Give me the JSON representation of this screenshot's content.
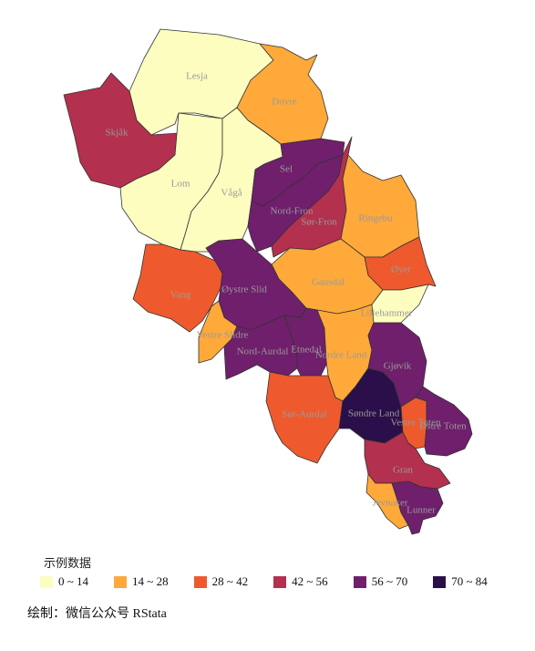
{
  "legend": {
    "title": "示例数据",
    "items": [
      {
        "label": "0 ~ 14",
        "color": "#fcfdbf"
      },
      {
        "label": "14 ~ 28",
        "color": "#fea93a"
      },
      {
        "label": "28 ~ 42",
        "color": "#ee5a2d"
      },
      {
        "label": "42 ~ 56",
        "color": "#b3304e"
      },
      {
        "label": "56 ~ 70",
        "color": "#6f1f6b"
      },
      {
        "label": "70 ~ 84",
        "color": "#2a0f4a"
      }
    ]
  },
  "credit": "绘制：微信公众号 RStata",
  "regions": [
    {
      "name": "Lesja",
      "class": 0
    },
    {
      "name": "Dovre",
      "class": 1
    },
    {
      "name": "Skjåk",
      "class": 3
    },
    {
      "name": "Lom",
      "class": 0
    },
    {
      "name": "Vågå",
      "class": 0
    },
    {
      "name": "Sel",
      "class": 4
    },
    {
      "name": "Nord-Fron",
      "class": 4
    },
    {
      "name": "Sør-Fron",
      "class": 3
    },
    {
      "name": "Ringebu",
      "class": 1
    },
    {
      "name": "Øyer",
      "class": 2
    },
    {
      "name": "Gausdal",
      "class": 1
    },
    {
      "name": "Lillehammer",
      "class": 0
    },
    {
      "name": "Vang",
      "class": 2
    },
    {
      "name": "Øystre Slid",
      "class": 4
    },
    {
      "name": "Vestre Slidre",
      "class": 1
    },
    {
      "name": "Nord-Aurdal",
      "class": 4
    },
    {
      "name": "Etnedal",
      "class": 4
    },
    {
      "name": "Nordre Land",
      "class": 1
    },
    {
      "name": "Sør-Aurdal",
      "class": 2
    },
    {
      "name": "Søndre Land",
      "class": 5
    },
    {
      "name": "Gjøvik",
      "class": 4
    },
    {
      "name": "Vestre Toten",
      "class": 2
    },
    {
      "name": "Østre Toten",
      "class": 4
    },
    {
      "name": "Gran",
      "class": 3
    },
    {
      "name": "Jevnaker",
      "class": 1
    },
    {
      "name": "Lunner",
      "class": 4
    }
  ]
}
